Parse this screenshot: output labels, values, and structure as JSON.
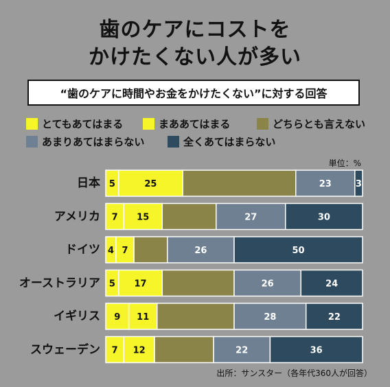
{
  "title_line1": "歯のケアにコストを",
  "title_line2": "かけたくない人が多い",
  "question": "“歯のケアに時間やお金をかけたくない”に対する回答",
  "unit": "単位：%",
  "source": "出所：サンスター（各年代360人が回答）",
  "chart_data": {
    "type": "bar",
    "orientation": "horizontal",
    "stacked": true,
    "xlim": [
      0,
      100
    ],
    "categories": [
      "日本",
      "アメリカ",
      "ドイツ",
      "オーストラリア",
      "イギリス",
      "スウェーデン"
    ],
    "series": [
      {
        "name": "とてもあてはまる",
        "color": "#f5f52a",
        "values": [
          5,
          7,
          4,
          5,
          9,
          7
        ],
        "label_values": [
          "5",
          "7",
          "4",
          "5",
          "9",
          "7"
        ]
      },
      {
        "name": "まああてはまる",
        "color": "#f5f52a",
        "values": [
          25,
          15,
          7,
          17,
          11,
          12
        ],
        "label_values": [
          "25",
          "15",
          "7",
          "17",
          "11",
          "12"
        ]
      },
      {
        "name": "どちらとも言えない",
        "color": "#8a8448",
        "values": [
          44,
          21,
          13,
          28,
          30,
          23
        ],
        "label_values": [
          "",
          "",
          "",
          "",
          "",
          ""
        ]
      },
      {
        "name": "あまりあてはまらない",
        "color": "#6e8092",
        "values": [
          23,
          27,
          26,
          26,
          28,
          22
        ],
        "label_values": [
          "23",
          "27",
          "26",
          "26",
          "28",
          "22"
        ]
      },
      {
        "name": "全くあてはまらない",
        "color": "#2d4a5f",
        "values": [
          3,
          30,
          50,
          24,
          22,
          36
        ],
        "label_values": [
          "3",
          "30",
          "50",
          "24",
          "22",
          "36"
        ]
      }
    ],
    "legend_position": "top",
    "grid": false
  }
}
